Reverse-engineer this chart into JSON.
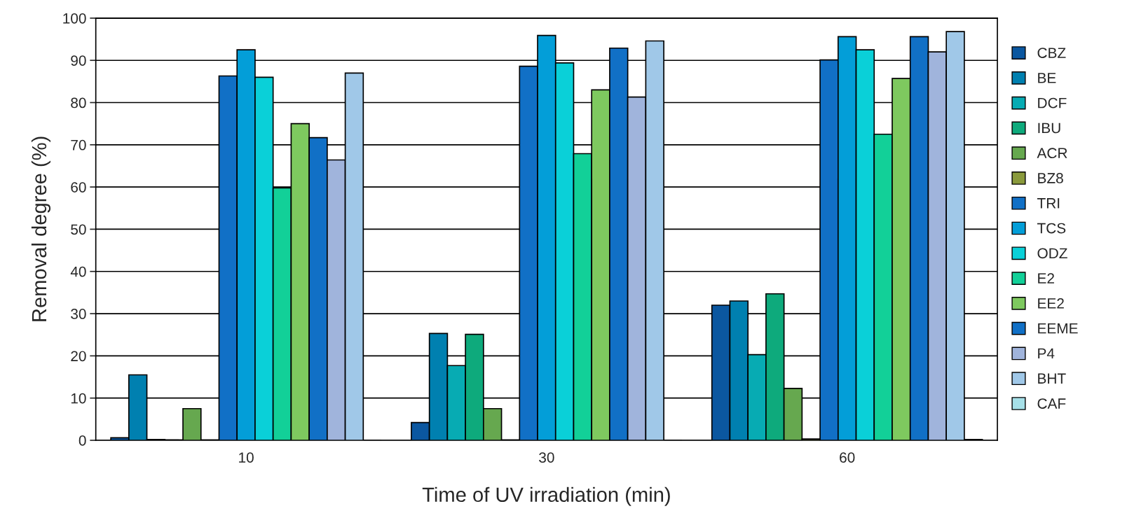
{
  "chart_data": {
    "type": "bar",
    "xlabel": "Time of UV irradiation (min)",
    "ylabel": "Removal degree (%)",
    "categories": [
      "10",
      "30",
      "60"
    ],
    "series": [
      {
        "name": "CBZ",
        "color": "#0b57a0",
        "values": [
          0.6,
          4.2,
          32
        ]
      },
      {
        "name": "BE",
        "color": "#0080b0",
        "values": [
          15.5,
          25.3,
          33
        ]
      },
      {
        "name": "DCF",
        "color": "#07abb3",
        "values": [
          0.2,
          17.7,
          20.3
        ]
      },
      {
        "name": "IBU",
        "color": "#0eaa7c",
        "values": [
          0.1,
          25.1,
          34.7
        ]
      },
      {
        "name": "ACR",
        "color": "#66a84f",
        "values": [
          7.5,
          7.5,
          12.3
        ]
      },
      {
        "name": "BZ8",
        "color": "#8a9a3c",
        "values": [
          0.1,
          0.1,
          0.3
        ]
      },
      {
        "name": "TRI",
        "color": "#1170c6",
        "values": [
          86.3,
          88.6,
          90.1
        ]
      },
      {
        "name": "TCS",
        "color": "#039ed8",
        "values": [
          92.5,
          95.9,
          95.6
        ]
      },
      {
        "name": "ODZ",
        "color": "#0ad0d8",
        "values": [
          86,
          89.4,
          92.5
        ]
      },
      {
        "name": "E2",
        "color": "#12d098",
        "values": [
          59.8,
          67.9,
          72.5
        ]
      },
      {
        "name": "EE2",
        "color": "#7ec95f",
        "values": [
          75,
          83,
          85.7
        ]
      },
      {
        "name": "EEME",
        "color": "#1170c6",
        "values": [
          71.7,
          92.9,
          95.6
        ]
      },
      {
        "name": "P4",
        "color": "#a0b4dc",
        "values": [
          66.4,
          81.3,
          92
        ]
      },
      {
        "name": "BHT",
        "color": "#a0c8e8",
        "values": [
          87,
          94.6,
          96.8
        ]
      },
      {
        "name": "CAF",
        "color": "#a6e0e8",
        "values": [
          null,
          null,
          0.2
        ]
      }
    ],
    "ylim": [
      0,
      100
    ],
    "yticks": [
      0,
      10,
      20,
      30,
      40,
      50,
      60,
      70,
      80,
      90,
      100
    ],
    "grid": "y",
    "legend": "right"
  }
}
